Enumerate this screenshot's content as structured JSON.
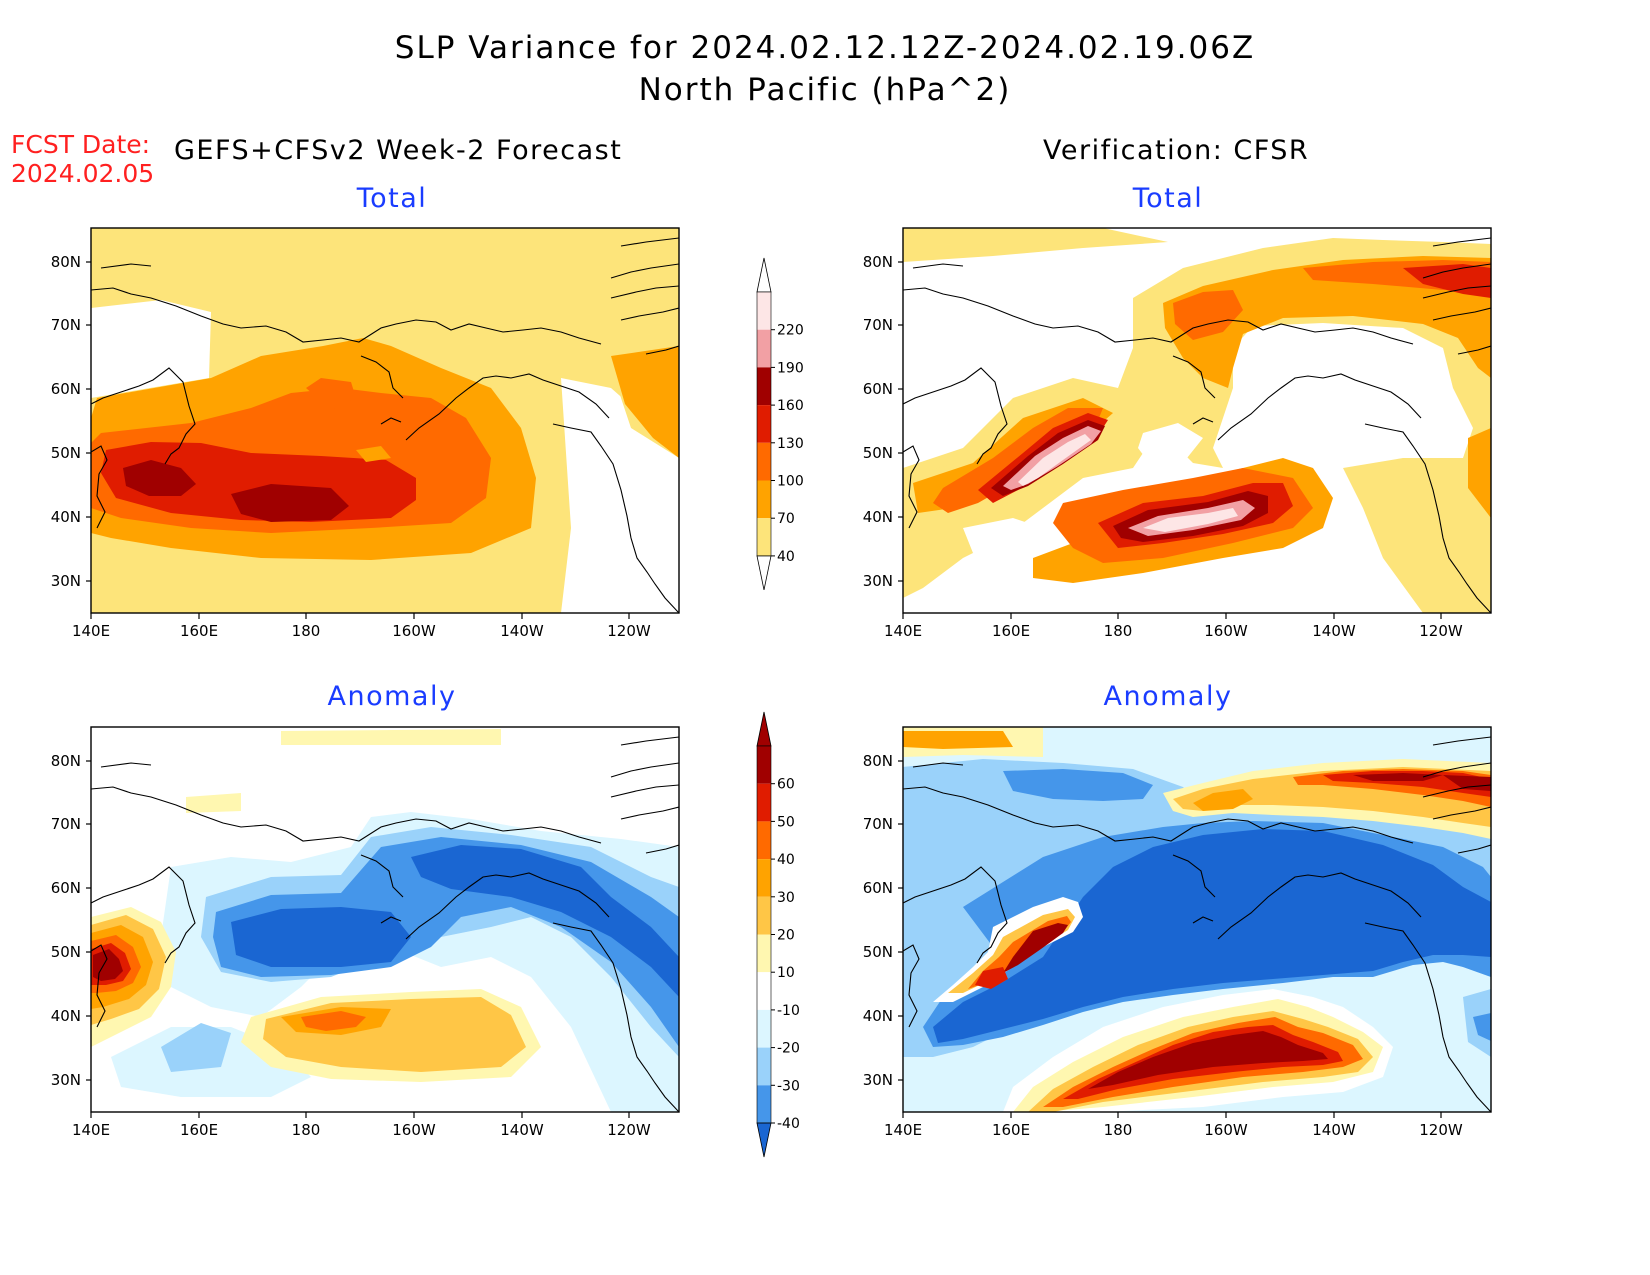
{
  "title_line1": "SLP Variance for 2024.02.12.12Z-2024.02.19.06Z",
  "title_line2": "North Pacific (hPa^2)",
  "fcst_label": "FCST Date:",
  "fcst_date": "2024.02.05",
  "left_header": "GEFS+CFSv2 Week-2 Forecast",
  "right_header": "Verification: CFSR",
  "panels": [
    {
      "title": "Total",
      "product": "GEFS+CFSv2 Week-2 Forecast",
      "field": "total"
    },
    {
      "title": "Total",
      "product": "Verification: CFSR",
      "field": "total"
    },
    {
      "title": "Anomaly",
      "product": "GEFS+CFSv2 Week-2 Forecast",
      "field": "anomaly"
    },
    {
      "title": "Anomaly",
      "product": "Verification: CFSR",
      "field": "anomaly"
    }
  ],
  "lat_ticks": [
    "80N",
    "70N",
    "60N",
    "50N",
    "40N",
    "30N"
  ],
  "lon_ticks": [
    "140E",
    "160E",
    "180",
    "160W",
    "140W",
    "120W"
  ],
  "total_colorbar": {
    "labels": [
      "220",
      "190",
      "160",
      "130",
      "100",
      "70",
      "40"
    ],
    "colors": [
      "#fde6e6",
      "#f2a0a4",
      "#a00000",
      "#e01c00",
      "#ff6a00",
      "#ffa300",
      "#fde47a"
    ],
    "top_color": "#ffffff"
  },
  "anomaly_colorbar": {
    "labels": [
      "60",
      "50",
      "40",
      "30",
      "20",
      "10",
      "-10",
      "-20",
      "-30",
      "-40"
    ],
    "colors": [
      "#a00000",
      "#e01c00",
      "#ff6a00",
      "#ffa300",
      "#ffc646",
      "#fff7b0",
      "#ffffff",
      "#dcf6ff",
      "#9ad2fa",
      "#4596ea"
    ],
    "top_color": "#a00000",
    "bottom_color": "#1a66d2"
  }
}
